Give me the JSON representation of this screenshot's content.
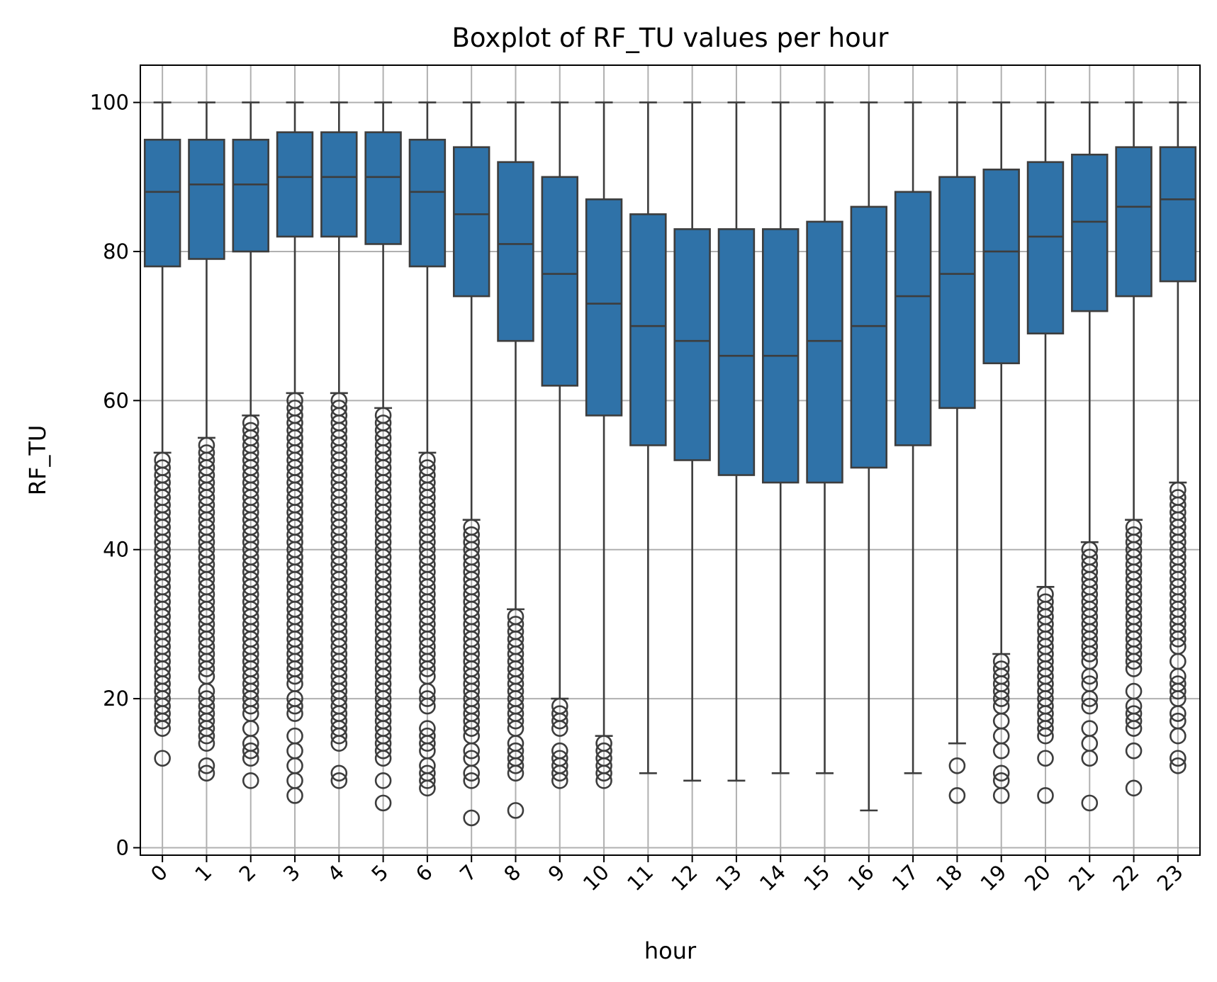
{
  "chart_data": {
    "type": "boxplot",
    "title": "Boxplot of RF_TU values per hour",
    "xlabel": "hour",
    "ylabel": "RF_TU",
    "ylim": [
      -1,
      105
    ],
    "yticks": [
      0,
      20,
      40,
      60,
      80,
      100
    ],
    "grid": true,
    "colors": {
      "box": "#2f72a8",
      "edge": "#3d3d3d",
      "grid": "#b0b0b0"
    },
    "categories": [
      "0",
      "1",
      "2",
      "3",
      "4",
      "5",
      "6",
      "7",
      "8",
      "9",
      "10",
      "11",
      "12",
      "13",
      "14",
      "15",
      "16",
      "17",
      "18",
      "19",
      "20",
      "21",
      "22",
      "23"
    ],
    "boxes": [
      {
        "q1": 78,
        "median": 88,
        "q3": 95,
        "whisker_low": 53,
        "whisker_high": 100,
        "outliers": [
          12,
          16,
          17,
          18,
          19,
          20,
          21,
          22,
          23,
          24,
          25,
          26,
          27,
          28,
          29,
          30,
          31,
          32,
          33,
          34,
          35,
          36,
          37,
          38,
          39,
          40,
          41,
          42,
          43,
          44,
          45,
          46,
          47,
          48,
          49,
          50,
          51,
          52
        ]
      },
      {
        "q1": 79,
        "median": 89,
        "q3": 95,
        "whisker_low": 55,
        "whisker_high": 100,
        "outliers": [
          10,
          11,
          14,
          15,
          16,
          17,
          18,
          19,
          20,
          21,
          23,
          24,
          25,
          26,
          27,
          28,
          29,
          30,
          31,
          32,
          33,
          34,
          35,
          36,
          37,
          38,
          39,
          40,
          41,
          42,
          43,
          44,
          45,
          46,
          47,
          48,
          49,
          50,
          51,
          52,
          53,
          54
        ]
      },
      {
        "q1": 80,
        "median": 89,
        "q3": 95,
        "whisker_low": 58,
        "whisker_high": 100,
        "outliers": [
          9,
          12,
          13,
          14,
          16,
          18,
          19,
          20,
          21,
          22,
          23,
          24,
          25,
          26,
          27,
          28,
          29,
          30,
          31,
          32,
          33,
          34,
          35,
          36,
          37,
          38,
          39,
          40,
          41,
          42,
          43,
          44,
          45,
          46,
          47,
          48,
          49,
          50,
          51,
          52,
          53,
          54,
          55,
          56,
          57
        ]
      },
      {
        "q1": 82,
        "median": 90,
        "q3": 96,
        "whisker_low": 61,
        "whisker_high": 100,
        "outliers": [
          7,
          9,
          11,
          13,
          15,
          18,
          19,
          20,
          22,
          23,
          24,
          25,
          26,
          27,
          28,
          29,
          30,
          31,
          32,
          33,
          34,
          35,
          36,
          37,
          38,
          39,
          40,
          41,
          42,
          43,
          44,
          45,
          46,
          47,
          48,
          49,
          50,
          51,
          52,
          53,
          54,
          55,
          56,
          57,
          58,
          59,
          60
        ]
      },
      {
        "q1": 82,
        "median": 90,
        "q3": 96,
        "whisker_low": 61,
        "whisker_high": 100,
        "outliers": [
          9,
          10,
          14,
          15,
          16,
          17,
          18,
          19,
          20,
          21,
          22,
          23,
          24,
          25,
          26,
          27,
          28,
          29,
          30,
          31,
          32,
          33,
          34,
          35,
          36,
          37,
          38,
          39,
          40,
          41,
          42,
          43,
          44,
          45,
          46,
          47,
          48,
          49,
          50,
          51,
          52,
          53,
          54,
          55,
          56,
          57,
          58,
          59,
          60
        ]
      },
      {
        "q1": 81,
        "median": 90,
        "q3": 96,
        "whisker_low": 59,
        "whisker_high": 100,
        "outliers": [
          6,
          9,
          12,
          13,
          14,
          15,
          16,
          17,
          18,
          19,
          20,
          21,
          22,
          23,
          24,
          25,
          26,
          27,
          28,
          29,
          30,
          31,
          32,
          33,
          34,
          35,
          36,
          37,
          38,
          39,
          40,
          41,
          42,
          43,
          44,
          45,
          46,
          47,
          48,
          49,
          50,
          51,
          52,
          53,
          54,
          55,
          56,
          57,
          58
        ]
      },
      {
        "q1": 78,
        "median": 88,
        "q3": 95,
        "whisker_low": 53,
        "whisker_high": 100,
        "outliers": [
          8,
          9,
          10,
          11,
          13,
          14,
          15,
          16,
          19,
          20,
          21,
          23,
          24,
          25,
          26,
          27,
          28,
          29,
          30,
          31,
          32,
          33,
          34,
          35,
          36,
          37,
          38,
          39,
          40,
          41,
          42,
          43,
          44,
          45,
          46,
          47,
          48,
          49,
          50,
          51,
          52
        ]
      },
      {
        "q1": 74,
        "median": 85,
        "q3": 94,
        "whisker_low": 44,
        "whisker_high": 100,
        "outliers": [
          4,
          9,
          10,
          12,
          13,
          15,
          16,
          17,
          18,
          19,
          20,
          21,
          22,
          23,
          24,
          25,
          26,
          27,
          28,
          29,
          30,
          31,
          32,
          33,
          34,
          35,
          36,
          37,
          38,
          39,
          40,
          41,
          42,
          43
        ]
      },
      {
        "q1": 68,
        "median": 81,
        "q3": 92,
        "whisker_low": 32,
        "whisker_high": 100,
        "outliers": [
          5,
          10,
          11,
          12,
          13,
          14,
          16,
          17,
          18,
          19,
          20,
          21,
          22,
          23,
          24,
          25,
          26,
          27,
          28,
          29,
          30,
          31
        ]
      },
      {
        "q1": 62,
        "median": 77,
        "q3": 90,
        "whisker_low": 20,
        "whisker_high": 100,
        "outliers": [
          9,
          10,
          11,
          12,
          13,
          16,
          17,
          18,
          19
        ]
      },
      {
        "q1": 58,
        "median": 73,
        "q3": 87,
        "whisker_low": 15,
        "whisker_high": 100,
        "outliers": [
          9,
          10,
          11,
          12,
          13,
          14
        ]
      },
      {
        "q1": 54,
        "median": 70,
        "q3": 85,
        "whisker_low": 10,
        "whisker_high": 100,
        "outliers": []
      },
      {
        "q1": 52,
        "median": 68,
        "q3": 83,
        "whisker_low": 9,
        "whisker_high": 100,
        "outliers": []
      },
      {
        "q1": 50,
        "median": 66,
        "q3": 83,
        "whisker_low": 9,
        "whisker_high": 100,
        "outliers": []
      },
      {
        "q1": 49,
        "median": 66,
        "q3": 83,
        "whisker_low": 10,
        "whisker_high": 100,
        "outliers": []
      },
      {
        "q1": 49,
        "median": 68,
        "q3": 84,
        "whisker_low": 10,
        "whisker_high": 100,
        "outliers": []
      },
      {
        "q1": 51,
        "median": 70,
        "q3": 86,
        "whisker_low": 5,
        "whisker_high": 100,
        "outliers": []
      },
      {
        "q1": 54,
        "median": 74,
        "q3": 88,
        "whisker_low": 10,
        "whisker_high": 100,
        "outliers": []
      },
      {
        "q1": 59,
        "median": 77,
        "q3": 90,
        "whisker_low": 14,
        "whisker_high": 100,
        "outliers": [
          7,
          11
        ]
      },
      {
        "q1": 65,
        "median": 80,
        "q3": 91,
        "whisker_low": 26,
        "whisker_high": 100,
        "outliers": [
          7,
          9,
          10,
          13,
          15,
          17,
          19,
          20,
          21,
          22,
          23,
          24,
          25
        ]
      },
      {
        "q1": 69,
        "median": 82,
        "q3": 92,
        "whisker_low": 35,
        "whisker_high": 100,
        "outliers": [
          7,
          12,
          15,
          16,
          17,
          18,
          19,
          20,
          21,
          22,
          23,
          24,
          25,
          26,
          27,
          28,
          29,
          30,
          31,
          32,
          33,
          34
        ]
      },
      {
        "q1": 72,
        "median": 84,
        "q3": 93,
        "whisker_low": 41,
        "whisker_high": 100,
        "outliers": [
          6,
          12,
          14,
          16,
          19,
          20,
          22,
          23,
          25,
          26,
          27,
          28,
          29,
          30,
          31,
          32,
          33,
          34,
          35,
          36,
          37,
          38,
          39,
          40
        ]
      },
      {
        "q1": 74,
        "median": 86,
        "q3": 94,
        "whisker_low": 44,
        "whisker_high": 100,
        "outliers": [
          8,
          13,
          16,
          17,
          18,
          19,
          21,
          24,
          25,
          26,
          27,
          28,
          29,
          30,
          31,
          32,
          33,
          34,
          35,
          36,
          37,
          38,
          39,
          40,
          41,
          42,
          43
        ]
      },
      {
        "q1": 76,
        "median": 87,
        "q3": 94,
        "whisker_low": 49,
        "whisker_high": 100,
        "outliers": [
          11,
          12,
          15,
          17,
          18,
          20,
          21,
          22,
          23,
          25,
          27,
          28,
          29,
          30,
          31,
          32,
          33,
          34,
          35,
          36,
          37,
          38,
          39,
          40,
          41,
          42,
          43,
          44,
          45,
          46,
          47,
          48
        ]
      }
    ]
  }
}
